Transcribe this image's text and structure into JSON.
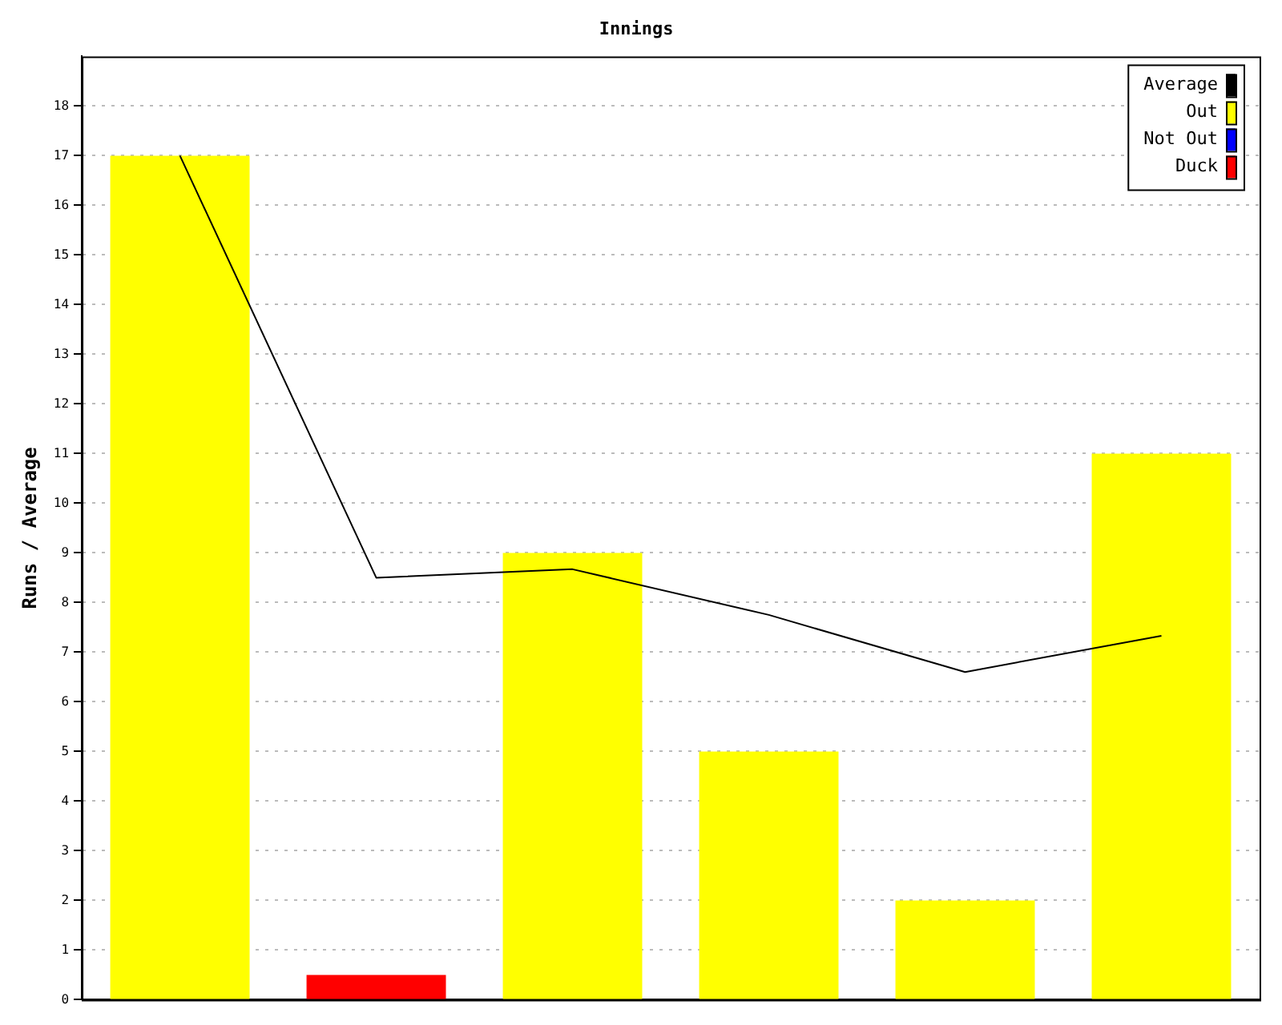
{
  "chart_data": {
    "type": "bar",
    "title": "Innings",
    "ylabel": "Runs / Average",
    "categories": [
      null,
      null,
      null,
      null,
      null,
      null
    ],
    "series": [
      {
        "name": "Average",
        "type": "line",
        "color": "#000000",
        "values": [
          17,
          8.5,
          8.67,
          7.75,
          6.6,
          7.33
        ]
      },
      {
        "name": "Out",
        "color": "#ffff00",
        "values": [
          17,
          null,
          9,
          5,
          2,
          11
        ]
      },
      {
        "name": "Not Out",
        "color": "#0000ff",
        "values": [
          null,
          null,
          null,
          null,
          null,
          null
        ]
      },
      {
        "name": "Duck",
        "color": "#ff0000",
        "values": [
          null,
          0.5,
          null,
          null,
          null,
          null
        ]
      }
    ],
    "ylim": [
      0,
      19
    ],
    "yticks": [
      0,
      1,
      2,
      3,
      4,
      5,
      6,
      7,
      8,
      9,
      10,
      11,
      12,
      13,
      14,
      15,
      16,
      17,
      18
    ],
    "grid": "y",
    "legend": "top right",
    "marker": "none",
    "line_style": "solid"
  }
}
